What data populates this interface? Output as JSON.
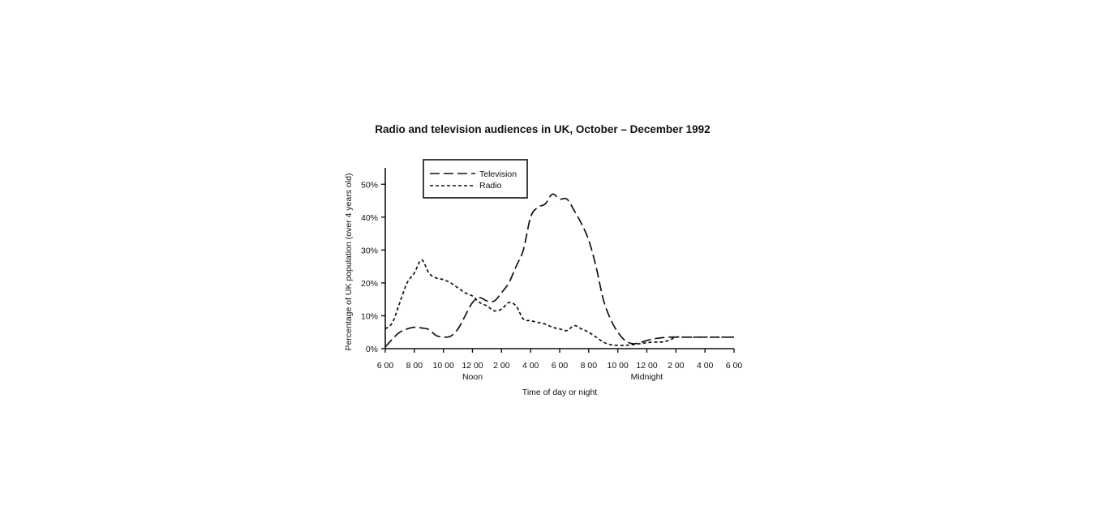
{
  "chart_data": {
    "type": "line",
    "title": "Radio and television audiences in UK, October – December 1992",
    "xlabel": "Time of day or night",
    "ylabel": "Percentage of UK population (over 4 years old)",
    "x_ticks": [
      "6 00",
      "8 00",
      "10 00",
      "12 00",
      "2 00",
      "4 00",
      "6 00",
      "8 00",
      "10 00",
      "12 00",
      "2 00",
      "4 00",
      "6 00"
    ],
    "x_sublabels": [
      {
        "hour": 6,
        "text": "Noon"
      },
      {
        "hour": 18,
        "text": "Midnight"
      }
    ],
    "y_ticks": [
      "0%",
      "10%",
      "20%",
      "30%",
      "40%",
      "50%"
    ],
    "x_unit": "hours since 6:00 a.m.",
    "xlim": [
      0,
      24
    ],
    "ylim": [
      0,
      55
    ],
    "grid": false,
    "legend_position": "top-left",
    "series": [
      {
        "name": "Television",
        "style": "long-dash",
        "x": [
          0,
          0.5,
          1,
          1.5,
          2,
          2.5,
          3,
          3.5,
          4,
          4.5,
          5,
          5.5,
          6,
          6.5,
          7,
          7.5,
          8,
          8.5,
          9,
          9.5,
          10,
          10.5,
          11,
          11.5,
          12,
          12.5,
          13,
          13.5,
          14,
          14.5,
          15,
          15.5,
          16,
          16.5,
          17,
          17.5,
          18,
          18.5,
          19,
          19.5,
          20,
          20.5,
          21,
          21.5,
          22,
          22.5,
          23,
          23.5,
          24
        ],
        "values": [
          0.5,
          3,
          5,
          6,
          6.5,
          6.3,
          5.8,
          4,
          3.5,
          3.8,
          6,
          10,
          14,
          15.5,
          14.5,
          14.5,
          17,
          20,
          25,
          30,
          40,
          43,
          44,
          47,
          45.5,
          45.5,
          42,
          38,
          33,
          25,
          15,
          9,
          5,
          2.5,
          1.5,
          1.8,
          2.5,
          3,
          3.3,
          3.5,
          3.5,
          3.5,
          3.5,
          3.5,
          3.5,
          3.5,
          3.5,
          3.5,
          3.5
        ]
      },
      {
        "name": "Radio",
        "style": "short-dash",
        "x": [
          0,
          0.5,
          1,
          1.5,
          2,
          2.5,
          3,
          3.5,
          4,
          4.5,
          5,
          5.5,
          6,
          6.5,
          7,
          7.5,
          8,
          8.5,
          9,
          9.5,
          10,
          10.5,
          11,
          11.5,
          12,
          12.5,
          13,
          13.5,
          14,
          14.5,
          15,
          15.5,
          16,
          16.5,
          17,
          17.5,
          18,
          18.5,
          19,
          19.5,
          20,
          20.5,
          21,
          21.5,
          22,
          22.5,
          23,
          23.5,
          24
        ],
        "values": [
          6,
          8,
          14,
          20,
          23,
          27,
          23,
          21.5,
          21,
          20,
          18.5,
          17,
          16,
          14,
          13,
          11.5,
          12,
          14,
          13,
          9,
          8.5,
          8,
          7.5,
          6.5,
          6,
          5.5,
          7,
          6,
          5,
          3.5,
          2,
          1.2,
          1,
          1,
          1.2,
          1.5,
          1.8,
          2,
          2,
          2.5,
          3.5,
          3.5,
          3.5,
          3.5,
          3.5,
          3.5,
          3.5,
          3.5,
          3.5
        ]
      }
    ]
  }
}
